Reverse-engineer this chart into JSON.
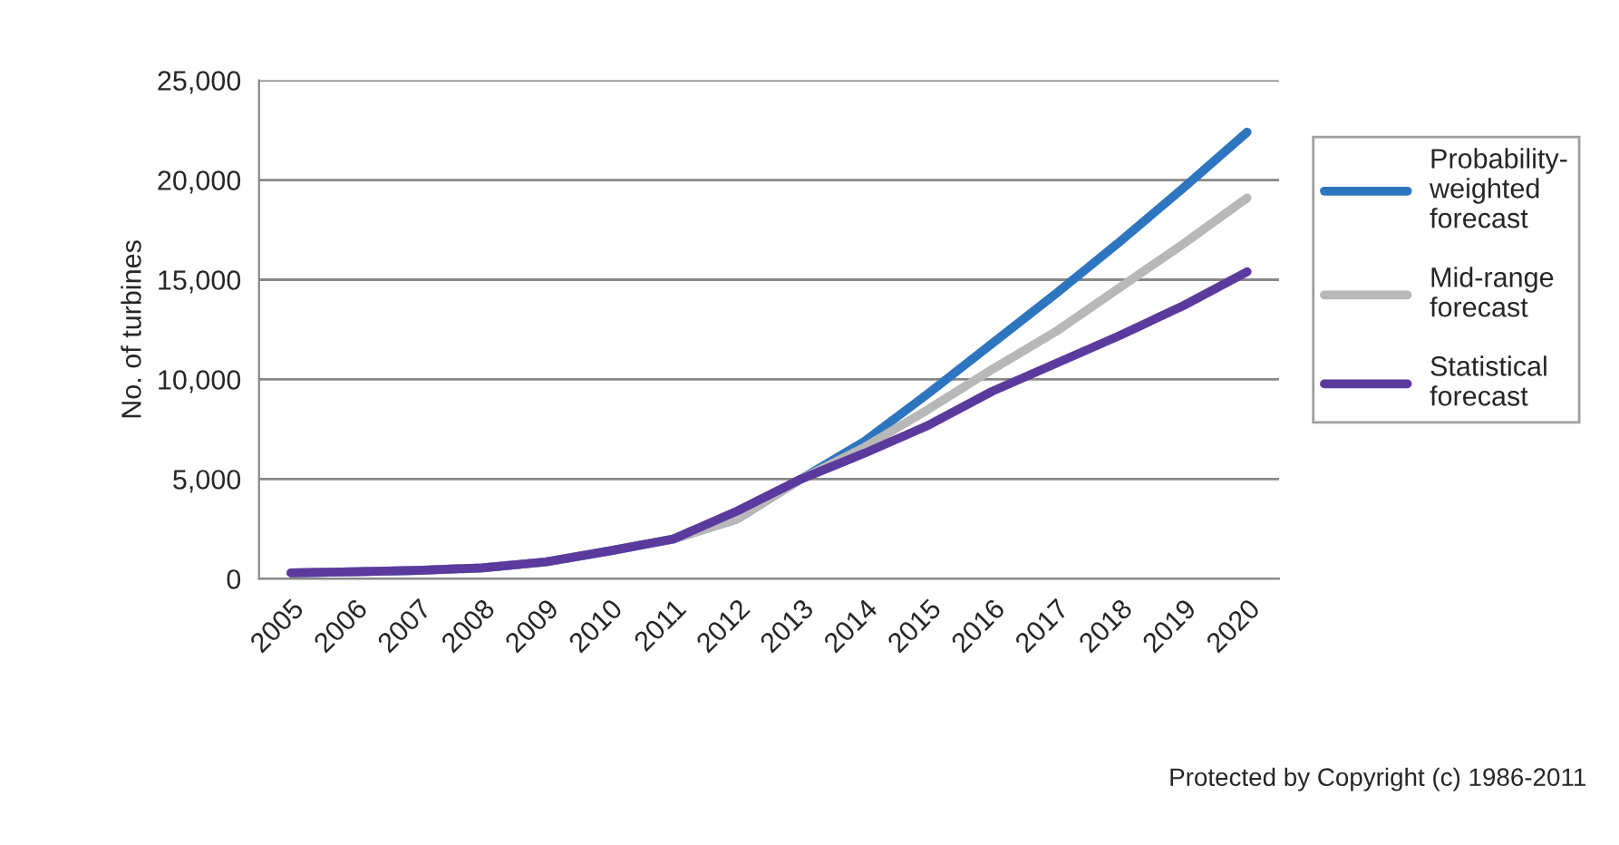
{
  "chart_data": {
    "type": "line",
    "ylabel": "No. of turbines",
    "categories": [
      "2005",
      "2006",
      "2007",
      "2008",
      "2009",
      "2010",
      "2011",
      "2012",
      "2013",
      "2014",
      "2015",
      "2016",
      "2017",
      "2018",
      "2019",
      "2020"
    ],
    "series": [
      {
        "name": "Probability-\nweighted\nforecast",
        "color": "#2e75c0",
        "values": [
          300,
          350,
          420,
          550,
          850,
          1400,
          2000,
          3000,
          5000,
          6900,
          9300,
          11800,
          14300,
          16900,
          19600,
          22400
        ]
      },
      {
        "name": "Mid-range\nforecast",
        "color": "#b8b8b8",
        "values": [
          300,
          350,
          420,
          550,
          850,
          1400,
          2000,
          3000,
          5000,
          6600,
          8500,
          10500,
          12400,
          14600,
          16800,
          19100
        ]
      },
      {
        "name": "Statistical\nforecast",
        "color": "#5b3a9e",
        "values": [
          300,
          350,
          420,
          550,
          850,
          1400,
          2000,
          3400,
          5000,
          6300,
          7700,
          9400,
          10800,
          12200,
          13700,
          15400
        ]
      }
    ],
    "ylim": [
      0,
      25000
    ],
    "yticks": [
      {
        "value": 0,
        "label": "0"
      },
      {
        "value": 5000,
        "label": "5,000"
      },
      {
        "value": 10000,
        "label": "10,000"
      },
      {
        "value": 15000,
        "label": "15,000"
      },
      {
        "value": 20000,
        "label": "20,000"
      },
      {
        "value": 25000,
        "label": "25,000"
      }
    ],
    "grid": "y",
    "legend": "right",
    "line_style": "solid",
    "marker": "none",
    "annotations": [
      "Protected by Copyright (c) 1986-2011"
    ]
  }
}
